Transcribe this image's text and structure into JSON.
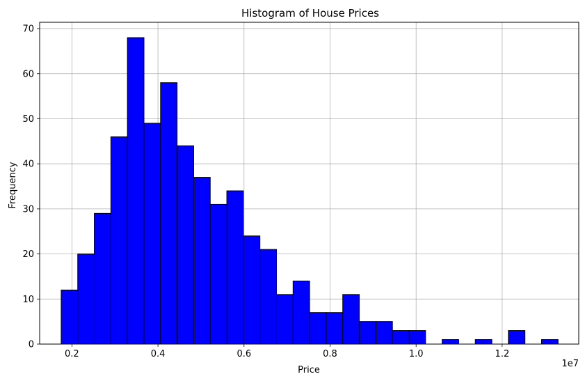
{
  "chart_data": {
    "type": "bar",
    "title": "Histogram of House Prices",
    "xlabel": "Price",
    "ylabel": "Frequency",
    "x_offset_label": "1e7",
    "xlim": [
      0.125,
      1.378
    ],
    "ylim": [
      0,
      71.4
    ],
    "xticks": [
      0.2,
      0.4,
      0.6,
      0.8,
      1.0,
      1.2
    ],
    "xtick_labels": [
      "0.2",
      "0.4",
      "0.6",
      "0.8",
      "1.0",
      "1.2"
    ],
    "yticks": [
      0,
      10,
      20,
      30,
      40,
      50,
      60,
      70
    ],
    "ytick_labels": [
      "0",
      "10",
      "20",
      "30",
      "40",
      "50",
      "60",
      "70"
    ],
    "grid": true,
    "bar_color": "#0000ff",
    "edge_color": "#000000",
    "bin_start": 0.175,
    "bin_width": 0.0385,
    "values": [
      12,
      20,
      29,
      46,
      68,
      49,
      58,
      44,
      37,
      31,
      34,
      24,
      21,
      11,
      14,
      7,
      7,
      11,
      5,
      5,
      3,
      3,
      0,
      1,
      0,
      1,
      0,
      3,
      0,
      1
    ]
  }
}
